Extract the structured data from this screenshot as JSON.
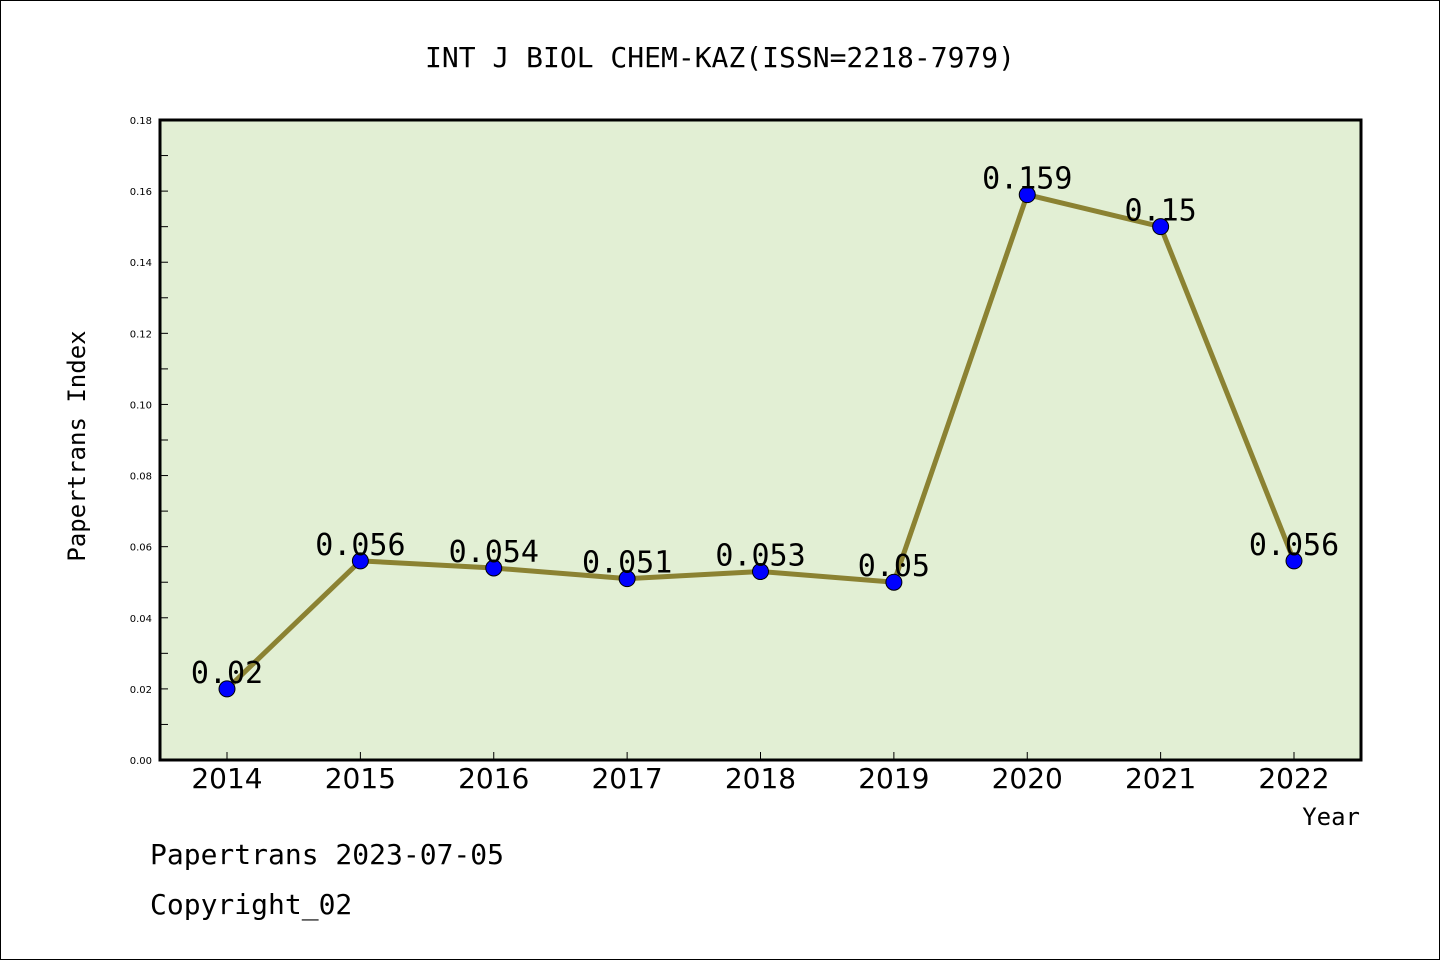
{
  "footer": {
    "line1": "Papertrans 2023-07-05",
    "line2": "Copyright_02"
  },
  "colors": {
    "plot_background": "#e2efd4",
    "line": "#8b8232",
    "marker": "#0000ff"
  },
  "chart_data": {
    "type": "line",
    "title": "INT J BIOL CHEM-KAZ(ISSN=2218-7979)",
    "xlabel": "Year",
    "ylabel": "Papertrans Index",
    "categories": [
      "2014",
      "2015",
      "2016",
      "2017",
      "2018",
      "2019",
      "2020",
      "2021",
      "2022"
    ],
    "series": [
      {
        "values": [
          0.02,
          0.056,
          0.054,
          0.051,
          0.053,
          0.05,
          0.159,
          0.15,
          0.056
        ],
        "labels": [
          "0.02",
          "0.056",
          "0.054",
          "0.051",
          "0.053",
          "0.05",
          "0.159",
          "0.15",
          "0.056"
        ]
      }
    ],
    "ylim": [
      0,
      0.18
    ],
    "yticks": [
      "0.00",
      "0.02",
      "0.04",
      "0.06",
      "0.08",
      "0.10",
      "0.12",
      "0.14",
      "0.16",
      "0.18"
    ],
    "grid": false,
    "legend": "none"
  }
}
